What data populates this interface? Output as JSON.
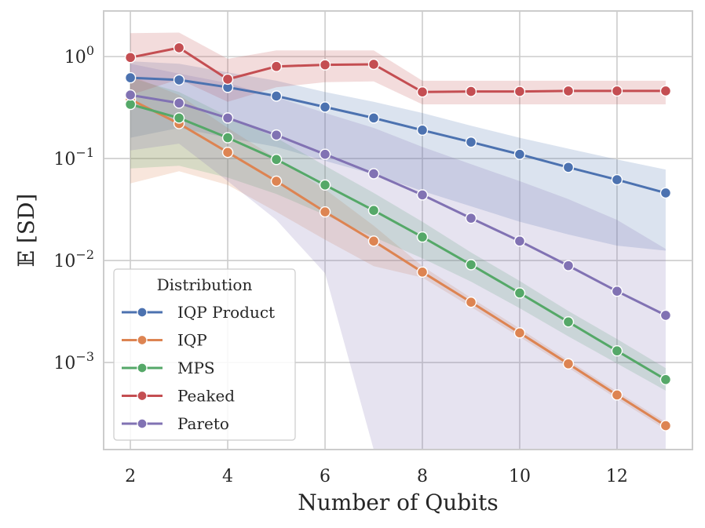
{
  "chart_data": {
    "type": "line",
    "xlabel": "Number of Qubits",
    "ylabel": "𝔼 [SD]",
    "yscale": "log",
    "xlim": [
      1.45,
      13.55
    ],
    "ylim": [
      0.00014,
      2.8
    ],
    "x": [
      2,
      3,
      4,
      5,
      6,
      7,
      8,
      9,
      10,
      11,
      12,
      13
    ],
    "x_ticks": [
      2,
      4,
      6,
      8,
      10,
      12
    ],
    "x_tick_labels": [
      "2",
      "4",
      "6",
      "8",
      "10",
      "12"
    ],
    "y_ticks": [
      1,
      0.1,
      0.01,
      0.001
    ],
    "y_tick_labels": [
      {
        "base": "10",
        "exp": "0"
      },
      {
        "base": "10",
        "exp": "−1"
      },
      {
        "base": "10",
        "exp": "−2"
      },
      {
        "base": "10",
        "exp": "−3"
      }
    ],
    "legend": {
      "title": "Distribution",
      "position": "lower-left"
    },
    "series": [
      {
        "name": "IQP Product",
        "color": "#4c72b0",
        "values": [
          0.62,
          0.59,
          0.5,
          0.41,
          0.32,
          0.25,
          0.19,
          0.145,
          0.11,
          0.082,
          0.062,
          0.046
        ],
        "lower": [
          0.16,
          0.2,
          0.16,
          0.13,
          0.095,
          0.07,
          0.048,
          0.034,
          0.024,
          0.018,
          0.014,
          0.0125
        ],
        "upper": [
          0.9,
          0.85,
          0.7,
          0.58,
          0.45,
          0.36,
          0.28,
          0.21,
          0.16,
          0.125,
          0.098,
          0.078
        ]
      },
      {
        "name": "IQP",
        "color": "#dd8452",
        "values": [
          0.38,
          0.22,
          0.115,
          0.06,
          0.03,
          0.0155,
          0.0077,
          0.0039,
          0.00195,
          0.00097,
          0.00048,
          0.00024
        ],
        "lower": [
          0.057,
          0.075,
          0.055,
          0.03,
          0.016,
          0.0088,
          0.0068,
          0.0035,
          0.00178,
          0.00089,
          0.00044,
          0.00022
        ],
        "upper": [
          0.65,
          0.42,
          0.2,
          0.1,
          0.05,
          0.022,
          0.0088,
          0.0043,
          0.00215,
          0.00105,
          0.00052,
          0.00026
        ]
      },
      {
        "name": "MPS",
        "color": "#55a868",
        "values": [
          0.34,
          0.25,
          0.16,
          0.098,
          0.055,
          0.031,
          0.017,
          0.0091,
          0.0048,
          0.0025,
          0.0013,
          0.00068
        ],
        "lower": [
          0.08,
          0.085,
          0.065,
          0.045,
          0.028,
          0.017,
          0.0105,
          0.0062,
          0.0034,
          0.0018,
          0.00098,
          0.00053
        ],
        "upper": [
          0.62,
          0.45,
          0.26,
          0.16,
          0.085,
          0.046,
          0.024,
          0.012,
          0.0063,
          0.0032,
          0.0017,
          0.00088
        ]
      },
      {
        "name": "Peaked",
        "color": "#c44e52",
        "values": [
          0.98,
          1.22,
          0.6,
          0.8,
          0.83,
          0.84,
          0.45,
          0.455,
          0.455,
          0.46,
          0.46,
          0.46
        ],
        "lower": [
          0.42,
          0.6,
          0.36,
          0.5,
          0.56,
          0.57,
          0.34,
          0.34,
          0.34,
          0.34,
          0.34,
          0.34
        ],
        "upper": [
          1.7,
          1.72,
          0.95,
          1.15,
          1.15,
          1.15,
          0.58,
          0.58,
          0.58,
          0.58,
          0.58,
          0.58
        ]
      },
      {
        "name": "Pareto",
        "color": "#8172b3",
        "values": [
          0.42,
          0.35,
          0.25,
          0.17,
          0.11,
          0.071,
          0.044,
          0.026,
          0.0155,
          0.0089,
          0.005,
          0.0029
        ],
        "lower": [
          0.12,
          0.14,
          0.06,
          0.025,
          0.0075,
          0.00014,
          0.00014,
          0.00014,
          0.00014,
          0.00014,
          0.00014,
          0.00014
        ],
        "upper": [
          0.85,
          0.68,
          0.55,
          0.4,
          0.28,
          0.2,
          0.13,
          0.088,
          0.06,
          0.04,
          0.025,
          0.013
        ]
      }
    ]
  }
}
